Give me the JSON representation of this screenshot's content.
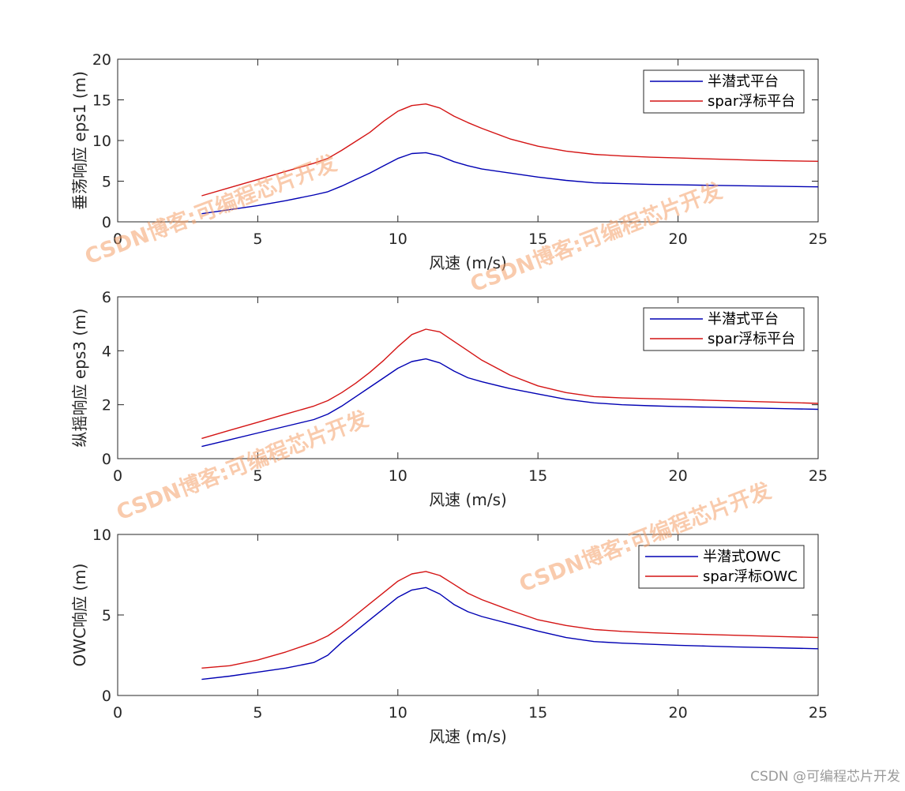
{
  "chart_data": [
    {
      "type": "line",
      "xlabel": "风速 (m/s)",
      "ylabel": "垂荡响应 eps1 (m)",
      "xlim": [
        0,
        25
      ],
      "ylim": [
        0,
        20
      ],
      "xticks": [
        0,
        5,
        10,
        15,
        20,
        25
      ],
      "yticks": [
        0,
        5,
        10,
        15,
        20
      ],
      "legend_position": "top-right",
      "x": [
        3,
        4,
        5,
        6,
        7,
        7.5,
        8,
        8.5,
        9,
        9.5,
        10,
        10.5,
        11,
        11.5,
        12,
        12.5,
        13,
        14,
        15,
        16,
        17,
        18,
        19,
        20,
        21,
        22,
        23,
        24,
        25
      ],
      "series": [
        {
          "name": "半潜式平台",
          "color": "#0000b3",
          "values": [
            1.0,
            1.5,
            2.0,
            2.6,
            3.3,
            3.7,
            4.4,
            5.2,
            6.0,
            6.9,
            7.8,
            8.4,
            8.5,
            8.1,
            7.4,
            6.9,
            6.5,
            6.0,
            5.5,
            5.1,
            4.8,
            4.7,
            4.6,
            4.55,
            4.5,
            4.45,
            4.4,
            4.35,
            4.3
          ]
        },
        {
          "name": "spar浮标平台",
          "color": "#d41414",
          "values": [
            3.2,
            4.2,
            5.2,
            6.2,
            7.2,
            7.8,
            8.8,
            9.9,
            11.0,
            12.4,
            13.6,
            14.3,
            14.5,
            14.0,
            13.0,
            12.2,
            11.5,
            10.2,
            9.3,
            8.7,
            8.3,
            8.1,
            7.95,
            7.85,
            7.75,
            7.65,
            7.55,
            7.5,
            7.45
          ]
        }
      ]
    },
    {
      "type": "line",
      "xlabel": "风速 (m/s)",
      "ylabel": "纵摇响应 eps3 (m)",
      "xlim": [
        0,
        25
      ],
      "ylim": [
        0,
        6
      ],
      "xticks": [
        0,
        5,
        10,
        15,
        20,
        25
      ],
      "yticks": [
        0,
        2,
        4,
        6
      ],
      "legend_position": "top-right",
      "x": [
        3,
        4,
        5,
        6,
        7,
        7.5,
        8,
        8.5,
        9,
        9.5,
        10,
        10.5,
        11,
        11.5,
        12,
        12.5,
        13,
        14,
        15,
        16,
        17,
        18,
        19,
        20,
        21,
        22,
        23,
        24,
        25
      ],
      "series": [
        {
          "name": "半潜式平台",
          "color": "#0000b3",
          "values": [
            0.45,
            0.7,
            0.95,
            1.2,
            1.45,
            1.65,
            1.95,
            2.3,
            2.65,
            3.0,
            3.35,
            3.6,
            3.7,
            3.55,
            3.25,
            3.0,
            2.85,
            2.6,
            2.4,
            2.2,
            2.07,
            2.0,
            1.96,
            1.93,
            1.91,
            1.89,
            1.87,
            1.85,
            1.83
          ]
        },
        {
          "name": "spar浮标平台",
          "color": "#d41414",
          "values": [
            0.75,
            1.05,
            1.35,
            1.65,
            1.95,
            2.15,
            2.45,
            2.8,
            3.2,
            3.65,
            4.15,
            4.6,
            4.8,
            4.7,
            4.35,
            4.0,
            3.65,
            3.1,
            2.7,
            2.45,
            2.3,
            2.25,
            2.22,
            2.2,
            2.17,
            2.14,
            2.11,
            2.08,
            2.05
          ]
        }
      ]
    },
    {
      "type": "line",
      "xlabel": "风速 (m/s)",
      "ylabel": "OWC响应 (m)",
      "xlim": [
        0,
        25
      ],
      "ylim": [
        0,
        10
      ],
      "xticks": [
        0,
        5,
        10,
        15,
        20,
        25
      ],
      "yticks": [
        0,
        5,
        10
      ],
      "legend_position": "top-right",
      "x": [
        3,
        4,
        5,
        6,
        7,
        7.5,
        8,
        8.5,
        9,
        9.5,
        10,
        10.5,
        11,
        11.5,
        12,
        12.5,
        13,
        14,
        15,
        16,
        17,
        18,
        19,
        20,
        21,
        22,
        23,
        24,
        25
      ],
      "series": [
        {
          "name": "半潜式OWC",
          "color": "#0000b3",
          "values": [
            1.0,
            1.2,
            1.45,
            1.7,
            2.05,
            2.5,
            3.3,
            4.0,
            4.7,
            5.4,
            6.1,
            6.55,
            6.7,
            6.3,
            5.65,
            5.2,
            4.9,
            4.45,
            4.0,
            3.6,
            3.35,
            3.25,
            3.18,
            3.12,
            3.07,
            3.02,
            2.98,
            2.94,
            2.9
          ]
        },
        {
          "name": "spar浮标OWC",
          "color": "#d41414",
          "values": [
            1.7,
            1.85,
            2.2,
            2.7,
            3.3,
            3.7,
            4.3,
            5.0,
            5.7,
            6.4,
            7.1,
            7.55,
            7.7,
            7.45,
            6.9,
            6.35,
            5.95,
            5.3,
            4.7,
            4.35,
            4.1,
            3.98,
            3.9,
            3.84,
            3.79,
            3.74,
            3.69,
            3.64,
            3.6
          ]
        }
      ]
    }
  ],
  "watermark": "CSDN博客:可编程芯片开发",
  "credit": "CSDN @可编程芯片开发"
}
